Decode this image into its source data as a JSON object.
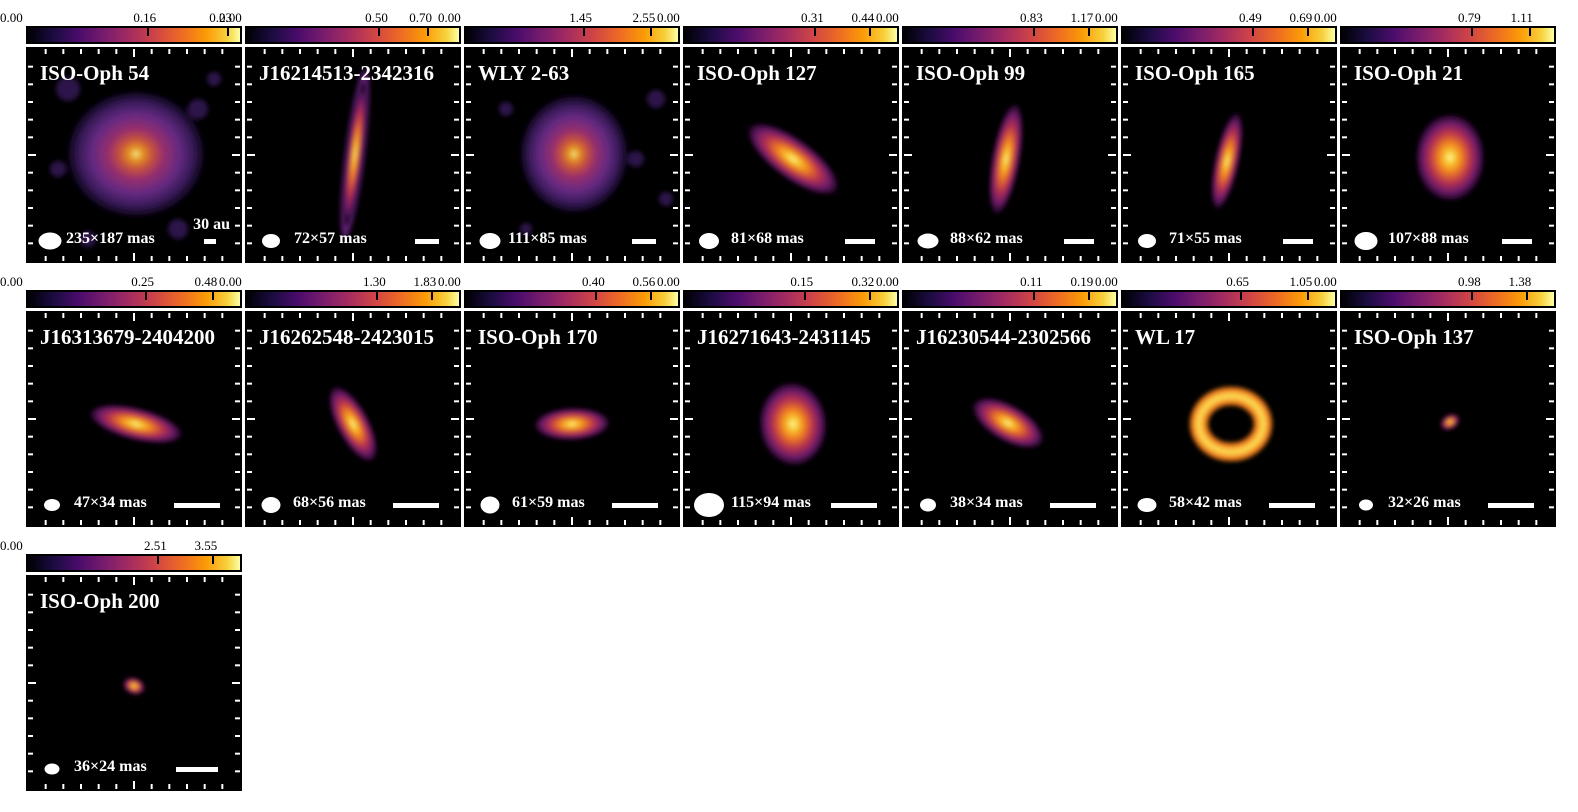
{
  "figure": {
    "panels": [
      {
        "name": "ISO-Oph 54",
        "cbar": [
          "0.00",
          "0.16",
          "0.23"
        ],
        "beam": "235×187 mas",
        "scale_label": "30 au"
      },
      {
        "name": "J16214513-2342316",
        "cbar": [
          "0.00",
          "0.50",
          "0.70"
        ],
        "beam": "72×57 mas",
        "scale_label": ""
      },
      {
        "name": "WLY 2-63",
        "cbar": [
          "0.00",
          "1.45",
          "2.55"
        ],
        "beam": "111×85 mas",
        "scale_label": ""
      },
      {
        "name": "ISO-Oph 127",
        "cbar": [
          "0.00",
          "0.31",
          "0.44"
        ],
        "beam": "81×68 mas",
        "scale_label": ""
      },
      {
        "name": "ISO-Oph 99",
        "cbar": [
          "0.00",
          "0.83",
          "1.17"
        ],
        "beam": "88×62 mas",
        "scale_label": ""
      },
      {
        "name": "ISO-Oph 165",
        "cbar": [
          "0.00",
          "0.49",
          "0.69"
        ],
        "beam": "71×55 mas",
        "scale_label": ""
      },
      {
        "name": "ISO-Oph 21",
        "cbar": [
          "0.00",
          "0.79",
          "1.11"
        ],
        "beam": "107×88 mas",
        "scale_label": ""
      },
      {
        "name": "J16313679-2404200",
        "cbar": [
          "0.00",
          "0.25",
          "0.48"
        ],
        "beam": "47×34 mas",
        "scale_label": ""
      },
      {
        "name": "J16262548-2423015",
        "cbar": [
          "0.00",
          "1.30",
          "1.83"
        ],
        "beam": "68×56 mas",
        "scale_label": ""
      },
      {
        "name": "ISO-Oph 170",
        "cbar": [
          "0.00",
          "0.40",
          "0.56"
        ],
        "beam": "61×59 mas",
        "scale_label": ""
      },
      {
        "name": "J16271643-2431145",
        "cbar": [
          "0.00",
          "0.15",
          "0.32"
        ],
        "beam": "115×94 mas",
        "scale_label": ""
      },
      {
        "name": "J16230544-2302566",
        "cbar": [
          "0.00",
          "0.11",
          "0.19"
        ],
        "beam": "38×34 mas",
        "scale_label": ""
      },
      {
        "name": "WL 17",
        "cbar": [
          "0.00",
          "0.65",
          "1.05"
        ],
        "beam": "58×42 mas",
        "scale_label": ""
      },
      {
        "name": "ISO-Oph 137",
        "cbar": [
          "0.00",
          "0.98",
          "1.38"
        ],
        "beam": "32×26 mas",
        "scale_label": ""
      },
      {
        "name": "ISO-Oph 200",
        "cbar": [
          "0.00",
          "2.51",
          "3.55"
        ],
        "beam": "36×24 mas",
        "scale_label": ""
      }
    ]
  }
}
